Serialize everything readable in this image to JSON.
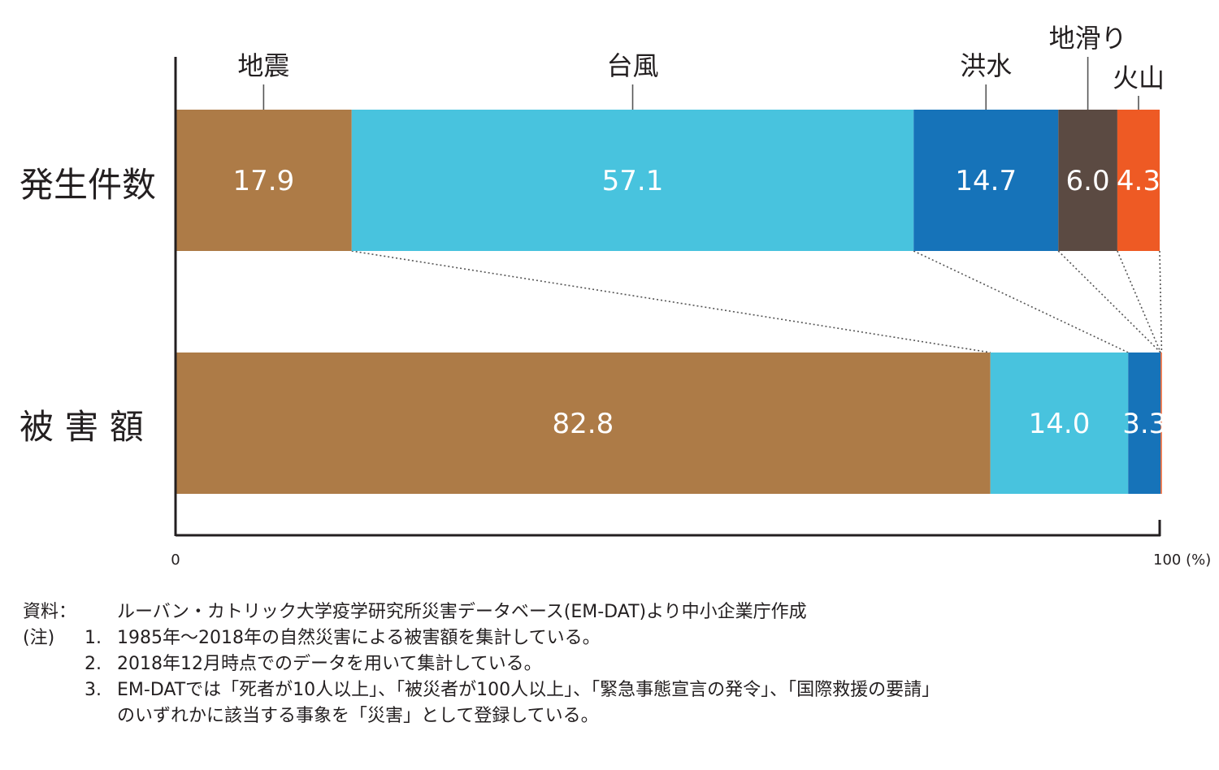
{
  "chart_data": {
    "type": "bar",
    "stacked": true,
    "orientation": "horizontal",
    "normalized_to": 100,
    "categories": [
      "発生件数",
      "被 害 額"
    ],
    "series": [
      {
        "name": "地震",
        "color": "#ad7b47",
        "values": [
          17.9,
          82.8
        ]
      },
      {
        "name": "台風",
        "color": "#48c3de",
        "values": [
          57.1,
          14.0
        ]
      },
      {
        "name": "洪水",
        "color": "#1673b9",
        "values": [
          14.7,
          3.3
        ]
      },
      {
        "name": "地滑り",
        "color": "#5b4a42",
        "values": [
          6.0,
          0.0
        ]
      },
      {
        "name": "火山",
        "color": "#ee5a24",
        "values": [
          4.3,
          0.1
        ]
      }
    ],
    "data_labels": [
      [
        "17.9",
        "82.8"
      ],
      [
        "57.1",
        "14.0"
      ],
      [
        "14.7",
        "3.3"
      ],
      [
        "6.0",
        ""
      ],
      [
        "4.3",
        ""
      ]
    ],
    "x_ticks": [
      "0",
      "100 (%)"
    ],
    "xlim": [
      0,
      100
    ],
    "legend": "category labels above top bar with leader lines",
    "connector_lines": "dotted lines linking segment boundaries of the two bars",
    "grid": false
  },
  "notes": {
    "source_label": "資料：",
    "source_text": "ルーバン・カトリック大学疫学研究所災害データベース(EM-DAT)より中小企業庁作成",
    "note_label": "(注)",
    "items": [
      {
        "num": "1.",
        "text": "1985年〜2018年の自然災害による被害額を集計している。"
      },
      {
        "num": "2.",
        "text": "2018年12月時点でのデータを用いて集計している。"
      },
      {
        "num": "3.",
        "text": "EM-DATでは「死者が10人以上」、「被災者が100人以上」、「緊急事態宣言の発令」、「国際救援の要請」"
      }
    ],
    "item3_continuation": "のいずれかに該当する事象を「災害」として登録している。"
  }
}
